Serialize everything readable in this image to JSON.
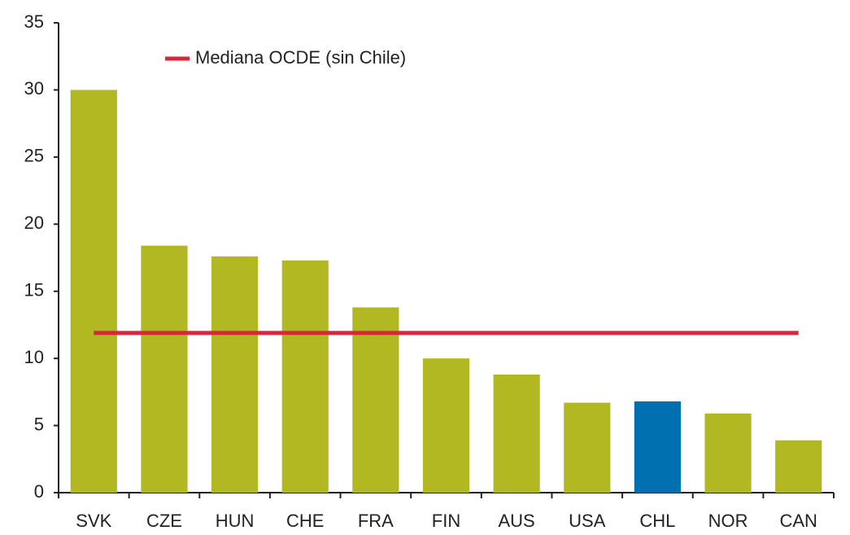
{
  "chart_data": {
    "type": "bar",
    "categories": [
      "SVK",
      "CZE",
      "HUN",
      "CHE",
      "FRA",
      "FIN",
      "AUS",
      "USA",
      "CHL",
      "NOR",
      "CAN"
    ],
    "values": [
      30,
      18.4,
      17.6,
      17.3,
      13.8,
      10,
      8.8,
      6.7,
      6.8,
      5.9,
      3.9
    ],
    "colors": [
      "#b1b822",
      "#b1b822",
      "#b1b822",
      "#b1b822",
      "#b1b822",
      "#b1b822",
      "#b1b822",
      "#b1b822",
      "#0070b0",
      "#b1b822",
      "#b1b822"
    ],
    "reference_line": {
      "name": "Mediana OCDE (sin Chile)",
      "value": 11.9,
      "color": "#d7263d"
    },
    "ylim": [
      0,
      35
    ],
    "yticks": [
      0,
      5,
      10,
      15,
      20,
      25,
      30,
      35
    ],
    "grid": false
  }
}
